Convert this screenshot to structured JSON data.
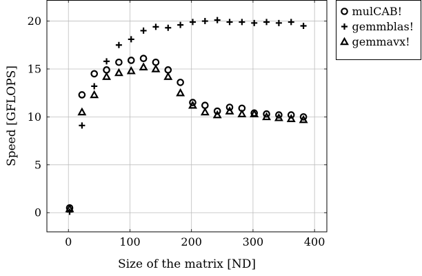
{
  "chart_data": {
    "type": "scatter",
    "title": "",
    "xlabel": "Size of the matrix [ND]",
    "ylabel": "Speed [GFLOPS]",
    "xlim": [
      -35,
      420
    ],
    "ylim": [
      -2,
      22.2
    ],
    "xticks": [
      0,
      100,
      200,
      300,
      400
    ],
    "yticks": [
      0,
      5,
      10,
      15,
      20
    ],
    "grid": true,
    "legend_position": "outside-top-right",
    "series": [
      {
        "name": "mulCAB!",
        "marker": "circle",
        "x": [
          2,
          22,
          42,
          62,
          82,
          102,
          122,
          142,
          162,
          182,
          202,
          222,
          242,
          262,
          282,
          302,
          322,
          342,
          362,
          382
        ],
        "y": [
          0.5,
          12.3,
          14.5,
          14.9,
          15.7,
          15.9,
          16.1,
          15.7,
          14.9,
          13.6,
          11.5,
          11.2,
          10.6,
          11.0,
          10.9,
          10.4,
          10.3,
          10.2,
          10.2,
          10.0
        ]
      },
      {
        "name": "gemmblas!",
        "marker": "plus",
        "x": [
          2,
          22,
          42,
          62,
          82,
          102,
          122,
          142,
          162,
          182,
          202,
          222,
          242,
          262,
          282,
          302,
          322,
          342,
          362,
          382
        ],
        "y": [
          0.1,
          9.1,
          13.2,
          15.8,
          17.5,
          18.1,
          19.0,
          19.4,
          19.3,
          19.6,
          19.9,
          20.0,
          20.1,
          19.9,
          19.9,
          19.8,
          19.9,
          19.8,
          19.9,
          19.5
        ]
      },
      {
        "name": "gemmavx!",
        "marker": "triangle",
        "x": [
          2,
          22,
          42,
          62,
          82,
          102,
          122,
          142,
          162,
          182,
          202,
          222,
          242,
          262,
          282,
          302,
          322,
          342,
          362,
          382
        ],
        "y": [
          0.4,
          10.5,
          12.3,
          14.2,
          14.6,
          14.8,
          15.2,
          15.0,
          14.2,
          12.5,
          11.2,
          10.5,
          10.2,
          10.6,
          10.3,
          10.3,
          10.0,
          9.9,
          9.8,
          9.7
        ]
      }
    ]
  }
}
